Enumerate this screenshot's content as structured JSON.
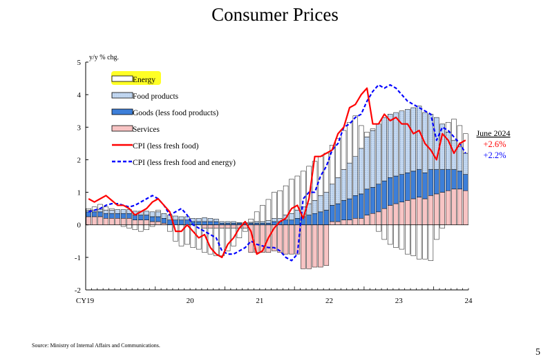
{
  "slide": {
    "title": "Consumer Prices",
    "source": "Source: Ministry of Internal Affairs and Communications.",
    "page_number": "5"
  },
  "colors": {
    "energy": "#fff200",
    "energy_highlight": "#ffff00",
    "food": "#c7dbf3",
    "goods": "#3d7fd9",
    "services": "#f8c4c4",
    "cpi_core": "#ff0000",
    "cpi_core_core": "#0000ff"
  },
  "chart_data": {
    "type": "bar",
    "ylabel": "y/y % chg.",
    "ylim": [
      -2,
      5
    ],
    "yticks": [
      "5",
      "4",
      "3",
      "2",
      "1",
      "0",
      "-1",
      "-2"
    ],
    "xticks": [
      "CY19",
      "20",
      "21",
      "22",
      "23",
      "24"
    ],
    "legend": [
      "Energy",
      "Food products",
      "Goods (less food products)",
      "Services",
      "CPI (less fresh food)",
      "CPI (less fresh food and energy)"
    ],
    "annotation": {
      "label": "June 2024",
      "cpi_core": "+2.6%",
      "cpi_core_core": "+2.2%"
    },
    "months": 66,
    "series": [
      {
        "name": "Energy",
        "kind": "bar",
        "values": [
          0.05,
          0.1,
          0.15,
          0.1,
          0.05,
          0,
          -0.05,
          -0.1,
          -0.15,
          -0.2,
          -0.15,
          -0.05,
          0.05,
          0,
          -0.2,
          -0.5,
          -0.65,
          -0.6,
          -0.7,
          -0.75,
          -0.75,
          -0.8,
          -0.85,
          -0.85,
          -0.7,
          -0.55,
          -0.3,
          -0.1,
          0.1,
          0.3,
          0.5,
          0.65,
          0.8,
          0.85,
          0.9,
          1.05,
          1.05,
          1.1,
          1.15,
          1.2,
          1.2,
          1.2,
          1.2,
          1.2,
          1.2,
          1.25,
          1.25,
          0.7,
          0.15,
          0.05,
          -0.2,
          -0.45,
          -0.6,
          -0.7,
          -0.75,
          -0.9,
          -0.95,
          -1.05,
          -1.05,
          -1.1,
          -0.45,
          -0.1,
          0.3,
          0.65,
          0.65,
          0.6
        ]
      },
      {
        "name": "Food products",
        "kind": "bar",
        "values": [
          0.05,
          0.05,
          0.08,
          0.1,
          0.1,
          0.12,
          0.12,
          0.12,
          0.12,
          0.12,
          0.12,
          0.15,
          0.15,
          0.15,
          0.15,
          0.12,
          0.1,
          0.1,
          0.1,
          0.1,
          0.12,
          0.1,
          0.08,
          0.05,
          0.05,
          0.05,
          0.02,
          0.02,
          0.03,
          0.05,
          0.05,
          0.08,
          0.1,
          0.1,
          0.15,
          0.2,
          0.25,
          0.3,
          0.35,
          0.4,
          0.5,
          0.55,
          0.65,
          0.8,
          0.95,
          1.1,
          1.2,
          1.4,
          1.6,
          1.75,
          1.85,
          1.95,
          1.95,
          1.95,
          1.95,
          1.95,
          1.95,
          1.95,
          1.85,
          1.7,
          1.6,
          1.4,
          1.15,
          0.9,
          0.75,
          0.65
        ]
      },
      {
        "name": "Goods (less food products)",
        "kind": "bar",
        "values": [
          0.15,
          0.15,
          0.15,
          0.15,
          0.15,
          0.15,
          0.15,
          0.15,
          0.15,
          0.15,
          0.15,
          0.15,
          0.15,
          0.15,
          0.15,
          0.15,
          0.15,
          0.15,
          0.1,
          0.1,
          0.1,
          0.1,
          0.1,
          0.05,
          0.05,
          0.05,
          0.05,
          0.05,
          0.05,
          0.05,
          0.05,
          0.05,
          0.1,
          0.1,
          0.15,
          0.15,
          0.2,
          0.25,
          0.3,
          0.35,
          0.4,
          0.45,
          0.5,
          0.55,
          0.6,
          0.65,
          0.7,
          0.75,
          0.8,
          0.8,
          0.85,
          0.85,
          0.85,
          0.85,
          0.85,
          0.85,
          0.85,
          0.85,
          0.8,
          0.8,
          0.75,
          0.7,
          0.65,
          0.6,
          0.55,
          0.5
        ]
      },
      {
        "name": "Services",
        "kind": "bar",
        "values": [
          0.25,
          0.25,
          0.25,
          0.2,
          0.2,
          0.2,
          0.2,
          0.2,
          0.15,
          0.15,
          0.15,
          0.1,
          0.1,
          0.05,
          0,
          0,
          0,
          0,
          0,
          0,
          -0.1,
          -0.1,
          -0.1,
          -0.1,
          -0.1,
          -0.1,
          -0.1,
          -0.1,
          -0.85,
          -0.85,
          -0.85,
          -0.85,
          -0.8,
          -0.85,
          -0.9,
          -0.9,
          -0.9,
          -1.35,
          -1.35,
          -1.3,
          -1.3,
          -1.25,
          0.1,
          0.1,
          0.15,
          0.15,
          0.2,
          0.2,
          0.3,
          0.35,
          0.4,
          0.5,
          0.6,
          0.65,
          0.7,
          0.75,
          0.8,
          0.85,
          0.8,
          0.9,
          0.95,
          1.0,
          1.05,
          1.1,
          1.1,
          1.05
        ]
      },
      {
        "name": "CPI (less fresh food)",
        "kind": "line",
        "values": [
          0.8,
          0.7,
          0.8,
          0.9,
          0.75,
          0.6,
          0.6,
          0.5,
          0.3,
          0.4,
          0.5,
          0.7,
          0.8,
          0.6,
          0.4,
          -0.2,
          -0.2,
          0,
          -0.2,
          -0.4,
          -0.3,
          -0.7,
          -0.9,
          -1.0,
          -0.6,
          -0.4,
          -0.1,
          0.1,
          -0.2,
          -0.9,
          -0.8,
          -0.4,
          -0.1,
          0.1,
          0.2,
          0.5,
          0.6,
          0.2,
          0.8,
          2.1,
          2.1,
          2.2,
          2.3,
          2.8,
          3.0,
          3.6,
          3.7,
          4.0,
          4.2,
          3.1,
          3.1,
          3.4,
          3.2,
          3.3,
          3.1,
          3.1,
          2.8,
          2.9,
          2.5,
          2.3,
          2.0,
          2.8,
          2.6,
          2.2,
          2.5,
          2.6
        ]
      },
      {
        "name": "CPI (less fresh food and energy)",
        "kind": "line",
        "values": [
          0.4,
          0.45,
          0.5,
          0.6,
          0.65,
          0.65,
          0.6,
          0.55,
          0.6,
          0.7,
          0.8,
          0.9,
          0.8,
          0.6,
          0.3,
          0.4,
          0.5,
          0.3,
          0,
          -0.1,
          -0.2,
          -0.3,
          -0.4,
          -0.8,
          -0.9,
          -0.9,
          -0.8,
          -0.7,
          -0.5,
          -0.6,
          -0.65,
          -0.7,
          -0.7,
          -0.8,
          -1.0,
          -1.1,
          -0.9,
          0.8,
          1.0,
          1.0,
          1.5,
          1.8,
          2.3,
          2.5,
          3.0,
          3.1,
          3.3,
          3.4,
          3.8,
          4.1,
          4.3,
          4.2,
          4.3,
          4.2,
          4.0,
          3.8,
          3.7,
          3.6,
          3.5,
          3.4,
          2.6,
          3.0,
          2.9,
          2.7,
          2.5,
          2.2
        ]
      }
    ]
  }
}
